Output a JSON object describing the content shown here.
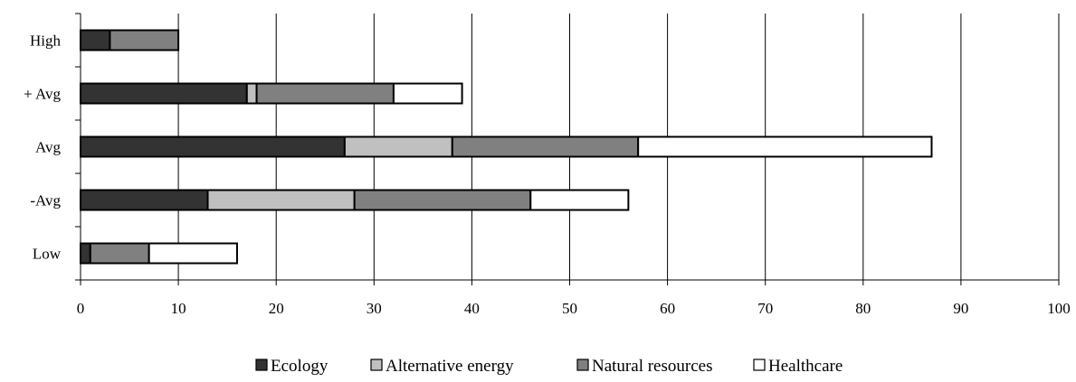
{
  "chart_data": {
    "type": "bar",
    "orientation": "horizontal",
    "stacked": true,
    "categories": [
      "High",
      "+ Avg",
      "Avg",
      "-Avg",
      "Low"
    ],
    "series": [
      {
        "name": "Ecology",
        "values": [
          3,
          17,
          27,
          13,
          1
        ],
        "color": "#333333"
      },
      {
        "name": "Alternative energy",
        "values": [
          0,
          1,
          11,
          15,
          0
        ],
        "color": "#c0c0c0"
      },
      {
        "name": "Natural resources",
        "values": [
          7,
          14,
          19,
          18,
          6
        ],
        "color": "#808080"
      },
      {
        "name": "Healthcare",
        "values": [
          0,
          7,
          30,
          10,
          9
        ],
        "color": "#ffffff"
      }
    ],
    "xlim": [
      0,
      100
    ],
    "xticks": [
      0,
      10,
      20,
      30,
      40,
      50,
      60,
      70,
      80,
      90,
      100
    ],
    "grid": "vertical",
    "legend_position": "bottom"
  }
}
